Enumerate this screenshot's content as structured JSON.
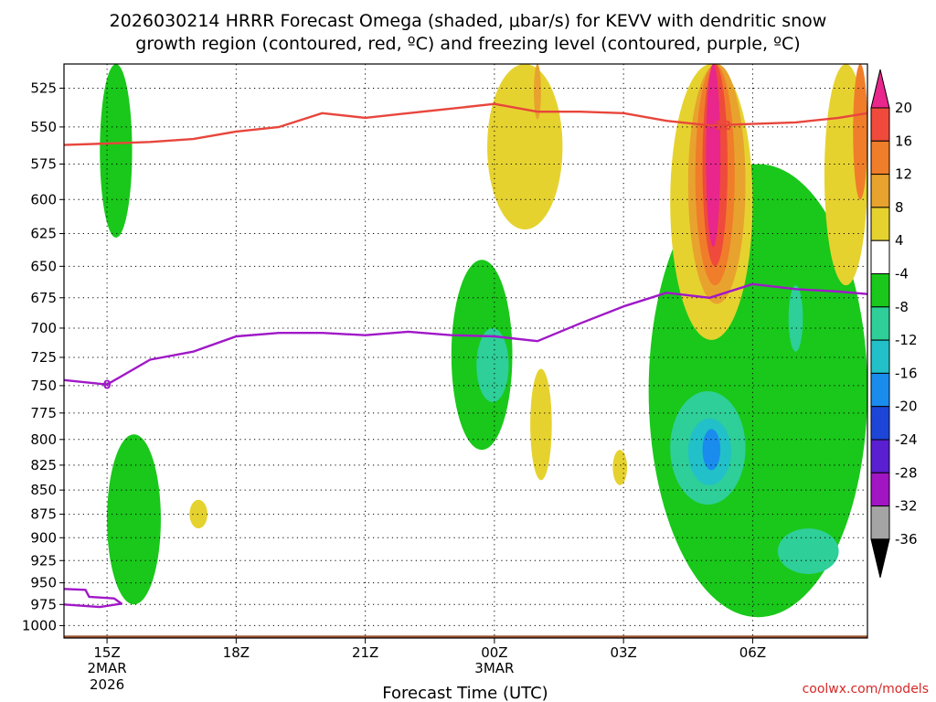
{
  "title_line1": "2026030214 HRRR Forecast Omega (shaded, μbar/s) for KEVV with dendritic snow",
  "title_line2": "growth region (contoured, red, ºC) and freezing level (contoured, purple, ºC)",
  "credit": "coolwx.com/models",
  "chart_data": {
    "type": "contour",
    "title": "2026030214 HRRR Forecast Omega (shaded, μbar/s) for KEVV with dendritic snow growth region (contoured, red, ºC) and freezing level (contoured, purple, ºC)",
    "xlabel": "Forecast Time (UTC)",
    "ylabel": "",
    "y_scale": "log",
    "ylim": [
      1015,
      510
    ],
    "xlim": [
      "2026-03-02 14:00Z",
      "2026-03-03 08:40Z"
    ],
    "y_ticks": [
      525,
      550,
      575,
      600,
      625,
      650,
      675,
      700,
      725,
      750,
      775,
      800,
      825,
      850,
      875,
      900,
      925,
      950,
      975,
      1000
    ],
    "x_ticks": [
      {
        "time": "2026-03-02 15:00Z",
        "label": "15Z",
        "sub1": "2MAR",
        "sub2": "2026"
      },
      {
        "time": "2026-03-02 18:00Z",
        "label": "18Z",
        "sub1": "",
        "sub2": ""
      },
      {
        "time": "2026-03-02 21:00Z",
        "label": "21Z",
        "sub1": "",
        "sub2": ""
      },
      {
        "time": "2026-03-03 00:00Z",
        "label": "00Z",
        "sub1": "3MAR",
        "sub2": ""
      },
      {
        "time": "2026-03-03 03:00Z",
        "label": "03Z",
        "sub1": "",
        "sub2": ""
      },
      {
        "time": "2026-03-03 06:00Z",
        "label": "06Z",
        "sub1": "",
        "sub2": ""
      }
    ],
    "grid": true,
    "colorbar": {
      "labels": [
        20,
        16,
        12,
        8,
        4,
        -4,
        -8,
        -12,
        -16,
        -20,
        -24,
        -28,
        -32,
        -36
      ],
      "bins": [
        {
          "range": "> 20",
          "color": "#e8268c"
        },
        {
          "range": "16 to 20",
          "color": "#ef4a3c"
        },
        {
          "range": "12 to 16",
          "color": "#f07d2a"
        },
        {
          "range": "8 to 12",
          "color": "#e8a32e"
        },
        {
          "range": "4 to 8",
          "color": "#e6d22f"
        },
        {
          "range": "-4 to 4",
          "color": "#ffffff"
        },
        {
          "range": "-8 to -4",
          "color": "#19c81a"
        },
        {
          "range": "-12 to -8",
          "color": "#2ecf98"
        },
        {
          "range": "-16 to -12",
          "color": "#22c0c8"
        },
        {
          "range": "-20 to -16",
          "color": "#1a8cee"
        },
        {
          "range": "-24 to -20",
          "color": "#1d46d8"
        },
        {
          "range": "-28 to -24",
          "color": "#5a1fd0"
        },
        {
          "range": "-32 to -28",
          "color": "#a115c2"
        },
        {
          "range": "-36 to -32",
          "color": "#a4a4a4"
        },
        {
          "range": "< -36",
          "color": "#000000"
        }
      ]
    },
    "shaded_regions": [
      {
        "bin": "-8 to -4",
        "time": [
          "2026-03-02 14:50Z",
          "2026-03-02 15:35Z"
        ],
        "pressure": [
          510,
          628
        ]
      },
      {
        "bin": "-8 to -4",
        "time": [
          "2026-03-02 15:00Z",
          "2026-03-02 16:15Z"
        ],
        "pressure": [
          795,
          975
        ]
      },
      {
        "bin": "-8 to -4",
        "time": [
          "2026-03-02 23:00Z",
          "2026-03-03 00:25Z"
        ],
        "pressure": [
          645,
          810
        ]
      },
      {
        "bin": "-12 to -8",
        "time": [
          "2026-03-02 23:35Z",
          "2026-03-03 00:20Z"
        ],
        "pressure": [
          700,
          765
        ]
      },
      {
        "bin": "4 to 8",
        "time": [
          "2026-03-02 23:50Z",
          "2026-03-03 01:35Z"
        ],
        "pressure": [
          510,
          622
        ]
      },
      {
        "bin": "8 to 12",
        "time": [
          "2026-03-03 00:55Z",
          "2026-03-03 01:05Z"
        ],
        "pressure": [
          510,
          545
        ]
      },
      {
        "bin": "4 to 8",
        "time": [
          "2026-03-03 00:50Z",
          "2026-03-03 01:20Z"
        ],
        "pressure": [
          735,
          840
        ]
      },
      {
        "bin": "4 to 8",
        "time": [
          "2026-03-02 16:55Z",
          "2026-03-02 17:20Z"
        ],
        "pressure": [
          860,
          890
        ]
      },
      {
        "bin": "4 to 8",
        "time": [
          "2026-03-03 02:45Z",
          "2026-03-03 03:05Z"
        ],
        "pressure": [
          810,
          845
        ]
      },
      {
        "bin": "-8 to -4",
        "time": [
          "2026-03-03 03:35Z",
          "2026-03-03 08:40Z"
        ],
        "pressure": [
          575,
          990
        ]
      },
      {
        "bin": "-12 to -8",
        "time": [
          "2026-03-03 04:05Z",
          "2026-03-03 05:50Z"
        ],
        "pressure": [
          755,
          865
        ]
      },
      {
        "bin": "-16 to -12",
        "time": [
          "2026-03-03 04:30Z",
          "2026-03-03 05:30Z"
        ],
        "pressure": [
          780,
          845
        ]
      },
      {
        "bin": "-20 to -16",
        "time": [
          "2026-03-03 04:50Z",
          "2026-03-03 05:15Z"
        ],
        "pressure": [
          790,
          830
        ]
      },
      {
        "bin": "-12 to -8",
        "time": [
          "2026-03-03 06:35Z",
          "2026-03-03 08:00Z"
        ],
        "pressure": [
          890,
          940
        ]
      },
      {
        "bin": "-12 to -8",
        "time": [
          "2026-03-03 06:50Z",
          "2026-03-03 07:10Z"
        ],
        "pressure": [
          665,
          720
        ]
      },
      {
        "bin": "4 to 8",
        "time": [
          "2026-03-03 04:05Z",
          "2026-03-03 06:00Z"
        ],
        "pressure": [
          510,
          710
        ]
      },
      {
        "bin": "8 to 12",
        "time": [
          "2026-03-03 04:30Z",
          "2026-03-03 05:50Z"
        ],
        "pressure": [
          510,
          680
        ]
      },
      {
        "bin": "12 to 16",
        "time": [
          "2026-03-03 04:40Z",
          "2026-03-03 05:35Z"
        ],
        "pressure": [
          510,
          665
        ]
      },
      {
        "bin": "16 to 20",
        "time": [
          "2026-03-03 04:50Z",
          "2026-03-03 05:25Z"
        ],
        "pressure": [
          510,
          650
        ]
      },
      {
        "bin": "> 20",
        "time": [
          "2026-03-03 04:55Z",
          "2026-03-03 05:15Z"
        ],
        "pressure": [
          510,
          635
        ]
      },
      {
        "bin": "4 to 8",
        "time": [
          "2026-03-03 07:40Z",
          "2026-03-03 08:40Z"
        ],
        "pressure": [
          510,
          665
        ]
      },
      {
        "bin": "12 to 16",
        "time": [
          "2026-03-03 08:20Z",
          "2026-03-03 08:40Z"
        ],
        "pressure": [
          510,
          600
        ]
      }
    ],
    "series": [
      {
        "color": "#e8463c",
        "label_text": "-12",
        "points": [
          [
            "2026-03-02 14:00Z",
            562
          ],
          [
            "2026-03-02 15:00Z",
            561
          ],
          [
            "2026-03-02 16:00Z",
            560
          ],
          [
            "2026-03-02 17:00Z",
            558
          ],
          [
            "2026-03-02 18:00Z",
            553
          ],
          [
            "2026-03-02 19:00Z",
            550
          ],
          [
            "2026-03-02 20:00Z",
            541
          ],
          [
            "2026-03-02 21:00Z",
            544
          ],
          [
            "2026-03-02 22:00Z",
            541
          ],
          [
            "2026-03-02 23:00Z",
            538
          ],
          [
            "2026-03-03 00:00Z",
            535
          ],
          [
            "2026-03-03 01:00Z",
            540
          ],
          [
            "2026-03-03 02:00Z",
            540
          ],
          [
            "2026-03-03 03:00Z",
            541
          ],
          [
            "2026-03-03 04:00Z",
            546
          ],
          [
            "2026-03-03 05:00Z",
            549
          ],
          [
            "2026-03-03 06:00Z",
            548
          ],
          [
            "2026-03-03 07:00Z",
            547
          ],
          [
            "2026-03-03 08:00Z",
            544
          ],
          [
            "2026-03-03 08:40Z",
            541
          ]
        ]
      },
      {
        "color": "#a018c8",
        "label_text": "0",
        "points": [
          [
            "2026-03-02 14:00Z",
            745
          ],
          [
            "2026-03-02 15:00Z",
            749
          ],
          [
            "2026-03-02 16:00Z",
            727
          ],
          [
            "2026-03-02 17:00Z",
            720
          ],
          [
            "2026-03-02 18:00Z",
            707
          ],
          [
            "2026-03-02 19:00Z",
            704
          ],
          [
            "2026-03-02 20:00Z",
            704
          ],
          [
            "2026-03-02 21:00Z",
            706
          ],
          [
            "2026-03-02 22:00Z",
            703
          ],
          [
            "2026-03-02 23:00Z",
            706
          ],
          [
            "2026-03-03 00:00Z",
            707
          ],
          [
            "2026-03-03 01:00Z",
            711
          ],
          [
            "2026-03-03 02:00Z",
            696
          ],
          [
            "2026-03-03 03:00Z",
            682
          ],
          [
            "2026-03-03 04:00Z",
            671
          ],
          [
            "2026-03-03 05:00Z",
            675
          ],
          [
            "2026-03-03 06:00Z",
            664
          ],
          [
            "2026-03-03 07:00Z",
            668
          ],
          [
            "2026-03-03 08:00Z",
            670
          ],
          [
            "2026-03-03 08:40Z",
            672
          ]
        ]
      },
      {
        "color": "#a018c8",
        "label_text": "",
        "points": [
          [
            "2026-03-02 14:00Z",
            957
          ],
          [
            "2026-03-02 14:30Z",
            958
          ],
          [
            "2026-03-02 14:35Z",
            966
          ],
          [
            "2026-03-02 15:10Z",
            968
          ],
          [
            "2026-03-02 15:20Z",
            974
          ],
          [
            "2026-03-02 14:50Z",
            978
          ],
          [
            "2026-03-02 14:00Z",
            975
          ]
        ]
      }
    ],
    "terrain": {
      "color": "#a0522d",
      "pressure": 1012
    }
  }
}
